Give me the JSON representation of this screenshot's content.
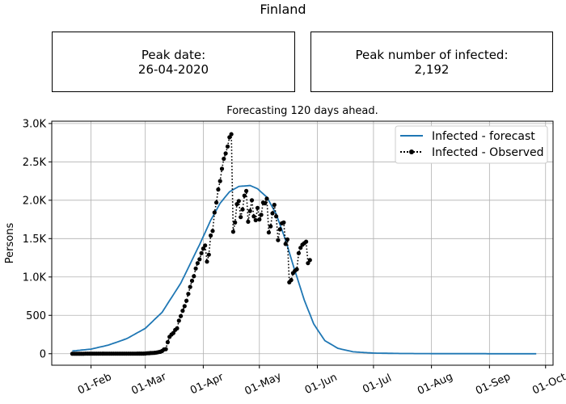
{
  "figure": {
    "title": "Finland",
    "boxes": [
      {
        "label": "Peak date:",
        "value": "26-04-2020"
      },
      {
        "label": "Peak number of infected:",
        "value": "2,192"
      }
    ]
  },
  "chart_data": {
    "type": "line",
    "title": "Forecasting 120 days ahead.",
    "xlabel": "",
    "ylabel": "Persons",
    "grid": true,
    "legend_position": "top-right",
    "xlim": [
      "2020-01-11",
      "2020-10-05"
    ],
    "ylim": [
      -150,
      3030
    ],
    "xticks": [
      {
        "date": "2020-02-01",
        "label": "01-Feb"
      },
      {
        "date": "2020-03-01",
        "label": "01-Mar"
      },
      {
        "date": "2020-04-01",
        "label": "01-Apr"
      },
      {
        "date": "2020-05-01",
        "label": "01-May"
      },
      {
        "date": "2020-06-01",
        "label": "01-Jun"
      },
      {
        "date": "2020-07-01",
        "label": "01-Jul"
      },
      {
        "date": "2020-08-01",
        "label": "01-Aug"
      },
      {
        "date": "2020-09-01",
        "label": "01-Sep"
      },
      {
        "date": "2020-10-01",
        "label": "01-Oct"
      }
    ],
    "yticks": [
      {
        "value": 0,
        "label": "0"
      },
      {
        "value": 500,
        "label": "500"
      },
      {
        "value": 1000,
        "label": "1.0K"
      },
      {
        "value": 1500,
        "label": "1.5K"
      },
      {
        "value": 2000,
        "label": "2.0K"
      },
      {
        "value": 2500,
        "label": "2.5K"
      },
      {
        "value": 3000,
        "label": "3.0K"
      }
    ],
    "series": [
      {
        "name": "Infected - forecast",
        "color": "#1f77b4",
        "style": "solid",
        "points": [
          [
            "2020-01-22",
            35
          ],
          [
            "2020-02-01",
            60
          ],
          [
            "2020-02-10",
            110
          ],
          [
            "2020-02-20",
            195
          ],
          [
            "2020-03-01",
            330
          ],
          [
            "2020-03-10",
            540
          ],
          [
            "2020-03-20",
            920
          ],
          [
            "2020-03-30",
            1420
          ],
          [
            "2020-04-05",
            1740
          ],
          [
            "2020-04-10",
            1960
          ],
          [
            "2020-04-15",
            2110
          ],
          [
            "2020-04-20",
            2180
          ],
          [
            "2020-04-26",
            2192
          ],
          [
            "2020-04-30",
            2150
          ],
          [
            "2020-05-05",
            2040
          ],
          [
            "2020-05-10",
            1820
          ],
          [
            "2020-05-15",
            1480
          ],
          [
            "2020-05-20",
            1080
          ],
          [
            "2020-05-25",
            700
          ],
          [
            "2020-05-30",
            390
          ],
          [
            "2020-06-05",
            170
          ],
          [
            "2020-06-12",
            70
          ],
          [
            "2020-06-20",
            25
          ],
          [
            "2020-07-01",
            8
          ],
          [
            "2020-07-15",
            3
          ],
          [
            "2020-08-01",
            1
          ],
          [
            "2020-09-01",
            0
          ],
          [
            "2020-09-26",
            0
          ]
        ]
      },
      {
        "name": "Infected - Observed",
        "color": "#000000",
        "style": "dotted",
        "marker": "circle",
        "points": [
          [
            "2020-01-22",
            0
          ],
          [
            "2020-01-23",
            0
          ],
          [
            "2020-01-24",
            0
          ],
          [
            "2020-01-25",
            0
          ],
          [
            "2020-01-26",
            0
          ],
          [
            "2020-01-27",
            0
          ],
          [
            "2020-01-28",
            0
          ],
          [
            "2020-01-29",
            1
          ],
          [
            "2020-01-30",
            1
          ],
          [
            "2020-01-31",
            1
          ],
          [
            "2020-02-01",
            1
          ],
          [
            "2020-02-02",
            1
          ],
          [
            "2020-02-03",
            1
          ],
          [
            "2020-02-04",
            1
          ],
          [
            "2020-02-05",
            1
          ],
          [
            "2020-02-06",
            1
          ],
          [
            "2020-02-07",
            1
          ],
          [
            "2020-02-08",
            1
          ],
          [
            "2020-02-09",
            1
          ],
          [
            "2020-02-10",
            1
          ],
          [
            "2020-02-11",
            1
          ],
          [
            "2020-02-12",
            1
          ],
          [
            "2020-02-13",
            1
          ],
          [
            "2020-02-14",
            1
          ],
          [
            "2020-02-15",
            1
          ],
          [
            "2020-02-16",
            1
          ],
          [
            "2020-02-17",
            1
          ],
          [
            "2020-02-18",
            1
          ],
          [
            "2020-02-19",
            1
          ],
          [
            "2020-02-20",
            1
          ],
          [
            "2020-02-21",
            1
          ],
          [
            "2020-02-22",
            1
          ],
          [
            "2020-02-23",
            1
          ],
          [
            "2020-02-24",
            1
          ],
          [
            "2020-02-25",
            1
          ],
          [
            "2020-02-26",
            2
          ],
          [
            "2020-02-27",
            2
          ],
          [
            "2020-02-28",
            2
          ],
          [
            "2020-02-29",
            2
          ],
          [
            "2020-03-01",
            3
          ],
          [
            "2020-03-02",
            6
          ],
          [
            "2020-03-03",
            7
          ],
          [
            "2020-03-04",
            9
          ],
          [
            "2020-03-05",
            10
          ],
          [
            "2020-03-06",
            12
          ],
          [
            "2020-03-07",
            15
          ],
          [
            "2020-03-08",
            21
          ],
          [
            "2020-03-09",
            25
          ],
          [
            "2020-03-10",
            35
          ],
          [
            "2020-03-11",
            55
          ],
          [
            "2020-03-12",
            60
          ],
          [
            "2020-03-13",
            150
          ],
          [
            "2020-03-14",
            220
          ],
          [
            "2020-03-15",
            250
          ],
          [
            "2020-03-16",
            270
          ],
          [
            "2020-03-17",
            310
          ],
          [
            "2020-03-18",
            330
          ],
          [
            "2020-03-19",
            430
          ],
          [
            "2020-03-20",
            490
          ],
          [
            "2020-03-21",
            560
          ],
          [
            "2020-03-22",
            620
          ],
          [
            "2020-03-23",
            690
          ],
          [
            "2020-03-24",
            780
          ],
          [
            "2020-03-25",
            870
          ],
          [
            "2020-03-26",
            950
          ],
          [
            "2020-03-27",
            1010
          ],
          [
            "2020-03-28",
            1110
          ],
          [
            "2020-03-29",
            1180
          ],
          [
            "2020-03-30",
            1230
          ],
          [
            "2020-03-31",
            1310
          ],
          [
            "2020-04-01",
            1370
          ],
          [
            "2020-04-02",
            1410
          ],
          [
            "2020-04-03",
            1200
          ],
          [
            "2020-04-04",
            1290
          ],
          [
            "2020-04-05",
            1540
          ],
          [
            "2020-04-06",
            1600
          ],
          [
            "2020-04-07",
            1840
          ],
          [
            "2020-04-08",
            1970
          ],
          [
            "2020-04-09",
            2140
          ],
          [
            "2020-04-10",
            2250
          ],
          [
            "2020-04-11",
            2410
          ],
          [
            "2020-04-12",
            2540
          ],
          [
            "2020-04-13",
            2610
          ],
          [
            "2020-04-14",
            2700
          ],
          [
            "2020-04-15",
            2820
          ],
          [
            "2020-04-16",
            2860
          ],
          [
            "2020-04-17",
            1590
          ],
          [
            "2020-04-18",
            1710
          ],
          [
            "2020-04-19",
            1950
          ],
          [
            "2020-04-20",
            1990
          ],
          [
            "2020-04-21",
            1780
          ],
          [
            "2020-04-22",
            1880
          ],
          [
            "2020-04-23",
            2060
          ],
          [
            "2020-04-24",
            2120
          ],
          [
            "2020-04-25",
            1720
          ],
          [
            "2020-04-26",
            1860
          ],
          [
            "2020-04-27",
            2000
          ],
          [
            "2020-04-28",
            1790
          ],
          [
            "2020-04-29",
            1740
          ],
          [
            "2020-04-30",
            1900
          ],
          [
            "2020-05-01",
            1750
          ],
          [
            "2020-05-02",
            1810
          ],
          [
            "2020-05-03",
            1970
          ],
          [
            "2020-05-04",
            1960
          ],
          [
            "2020-05-05",
            2020
          ],
          [
            "2020-05-06",
            1580
          ],
          [
            "2020-05-07",
            1660
          ],
          [
            "2020-05-08",
            1830
          ],
          [
            "2020-05-09",
            1940
          ],
          [
            "2020-05-10",
            1790
          ],
          [
            "2020-05-11",
            1480
          ],
          [
            "2020-05-12",
            1620
          ],
          [
            "2020-05-13",
            1700
          ],
          [
            "2020-05-14",
            1710
          ],
          [
            "2020-05-15",
            1430
          ],
          [
            "2020-05-16",
            1490
          ],
          [
            "2020-05-17",
            930
          ],
          [
            "2020-05-18",
            960
          ],
          [
            "2020-05-19",
            1050
          ],
          [
            "2020-05-20",
            1080
          ],
          [
            "2020-05-21",
            1100
          ],
          [
            "2020-05-22",
            1310
          ],
          [
            "2020-05-23",
            1380
          ],
          [
            "2020-05-24",
            1420
          ],
          [
            "2020-05-25",
            1440
          ],
          [
            "2020-05-26",
            1460
          ],
          [
            "2020-05-27",
            1180
          ],
          [
            "2020-05-28",
            1220
          ]
        ]
      }
    ]
  }
}
